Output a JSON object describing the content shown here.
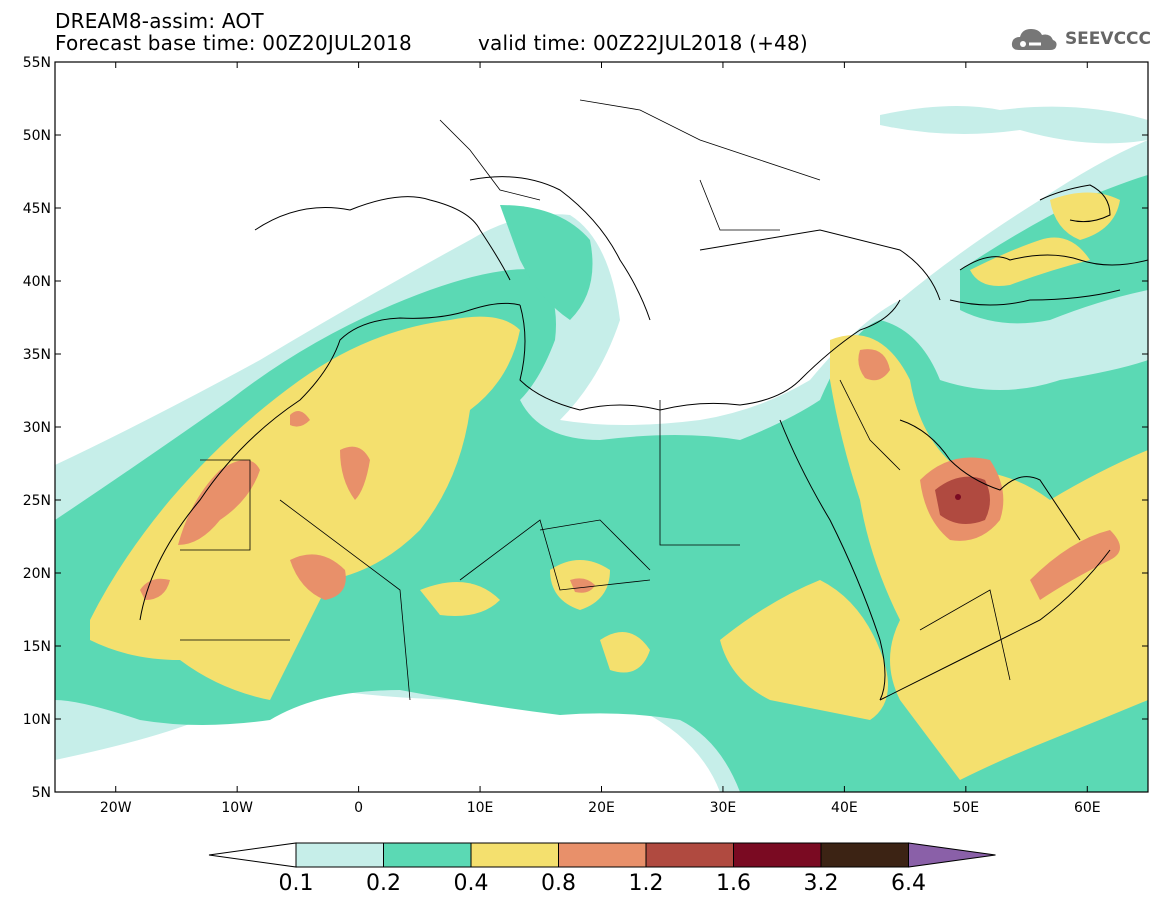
{
  "header": {
    "line1": "DREAM8-assim: AOT",
    "line2": "Forecast base time: 00Z20JUL2018",
    "line3": "valid time: 00Z22JUL2018 (+48)"
  },
  "logo": {
    "text": "SEEVCCC",
    "icon": "cloud-icon"
  },
  "map": {
    "lat_labels": [
      "55N",
      "50N",
      "45N",
      "40N",
      "35N",
      "30N",
      "25N",
      "20N",
      "15N",
      "10N",
      "5N"
    ],
    "lon_labels": [
      "20W",
      "10W",
      "0",
      "10E",
      "20E",
      "30E",
      "40E",
      "50E",
      "60E"
    ],
    "lon_range": [
      -25,
      65
    ],
    "lat_range": [
      5,
      55
    ]
  },
  "legend": {
    "labels": [
      "0.1",
      "0.2",
      "0.4",
      "0.8",
      "1.2",
      "1.6",
      "3.2",
      "6.4"
    ],
    "colors": [
      "#ffffff",
      "#c6eee9",
      "#5bd9b4",
      "#f4e06e",
      "#e8906a",
      "#b04a40",
      "#7a0a22",
      "#3c2314",
      "#8a60a8"
    ]
  }
}
